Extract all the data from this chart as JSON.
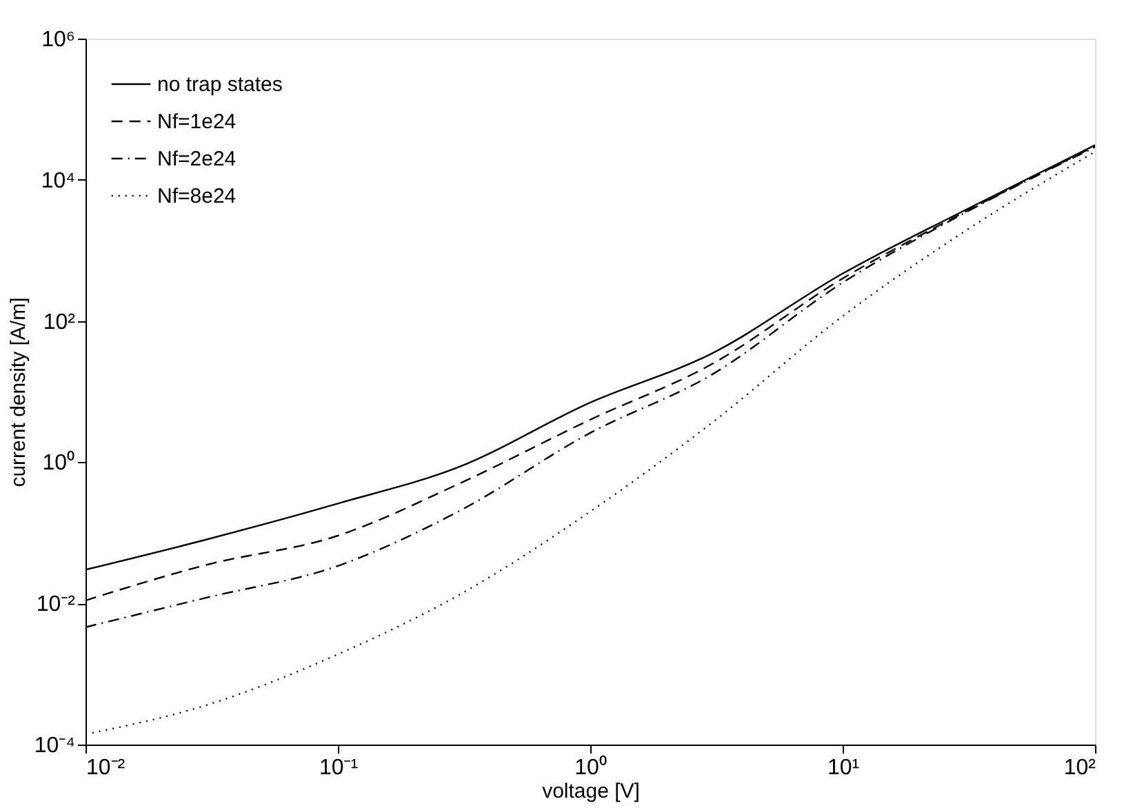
{
  "chart_data": {
    "type": "line",
    "xlabel": "voltage [V]",
    "ylabel": "current density [A/m]",
    "log": "xy",
    "grid": false,
    "legend": "top left",
    "marker": "none",
    "xlim": [
      0.01,
      100
    ],
    "ylim": [
      0.0001,
      1000000
    ],
    "xticks": [
      {
        "value": 0.01,
        "label": "10⁻²"
      },
      {
        "value": 0.1,
        "label": "10⁻¹"
      },
      {
        "value": 1,
        "label": "10⁰"
      },
      {
        "value": 10,
        "label": "10¹"
      },
      {
        "value": 100,
        "label": "10²"
      }
    ],
    "yticks": [
      {
        "value": 0.0001,
        "label": "10⁻⁴"
      },
      {
        "value": 0.01,
        "label": "10⁻²"
      },
      {
        "value": 1,
        "label": "10⁰"
      },
      {
        "value": 100,
        "label": "10²"
      },
      {
        "value": 10000,
        "label": "10⁴"
      },
      {
        "value": 1000000,
        "label": "10⁶"
      }
    ],
    "x": [
      0.01,
      0.03,
      0.1,
      0.3,
      1,
      3,
      10,
      30,
      100
    ],
    "series": [
      {
        "name": "no trap states",
        "color": "#000000",
        "line_style": "solid",
        "values": [
          0.03,
          0.08,
          0.26,
          0.85,
          7,
          34,
          470,
          3600,
          31000
        ]
      },
      {
        "name": "Nf=1e24",
        "color": "#000000",
        "line_style": "dashed",
        "values": [
          0.011,
          0.035,
          0.091,
          0.49,
          4,
          24,
          400,
          3400,
          30000
        ]
      },
      {
        "name": "Nf=2e24",
        "color": "#000000",
        "line_style": "dashdot",
        "values": [
          0.0046,
          0.012,
          0.034,
          0.2,
          2.6,
          17,
          350,
          3300,
          29000
        ]
      },
      {
        "name": "Nf=8e24",
        "color": "#000000",
        "line_style": "dotted",
        "values": [
          0.00014,
          0.00036,
          0.0019,
          0.013,
          0.2,
          3.5,
          117,
          1800,
          25000
        ]
      }
    ]
  }
}
